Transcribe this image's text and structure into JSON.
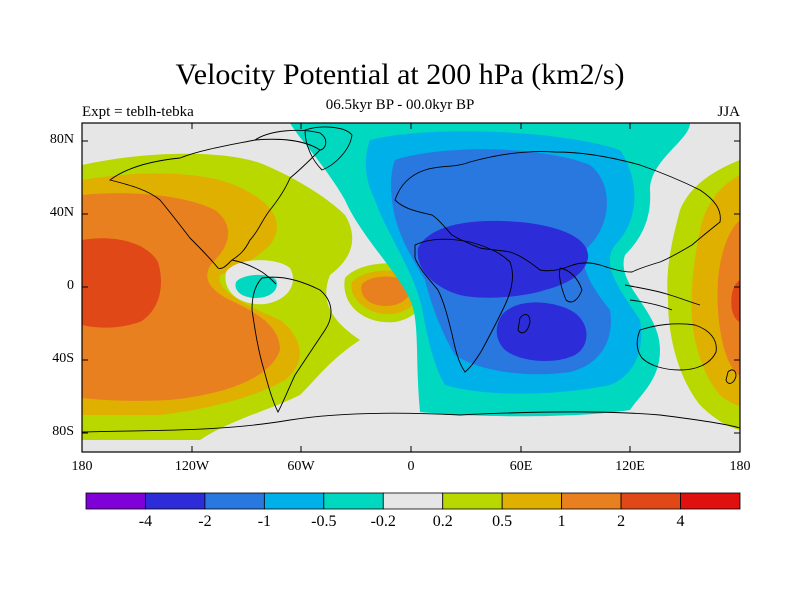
{
  "title": "Velocity Potential at 200 hPa (km2/s)",
  "subtitle": "06.5kyr BP - 00.0kyr BP",
  "left_label": "Expt = teblh-tebka",
  "right_label": "JJA",
  "y_ticks": [
    "80N",
    "40N",
    "0",
    "40S",
    "80S"
  ],
  "x_ticks": [
    "180",
    "120W",
    "60W",
    "0",
    "60E",
    "120E",
    "180"
  ],
  "colorbar": {
    "labels": [
      "-4",
      "-2",
      "-1",
      "-0.5",
      "-0.2",
      "0.2",
      "0.5",
      "1",
      "2",
      "4"
    ],
    "colors": [
      "#8000d8",
      "#2c2cd8",
      "#2878e0",
      "#00b0e8",
      "#00d8c0",
      "#e6e6e6",
      "#b8d800",
      "#e0b000",
      "#e88020",
      "#e04818",
      "#e01010"
    ]
  },
  "colors": {
    "background": "#ffffff",
    "coastline": "#000000",
    "neutral": "#e6e6e6"
  }
}
